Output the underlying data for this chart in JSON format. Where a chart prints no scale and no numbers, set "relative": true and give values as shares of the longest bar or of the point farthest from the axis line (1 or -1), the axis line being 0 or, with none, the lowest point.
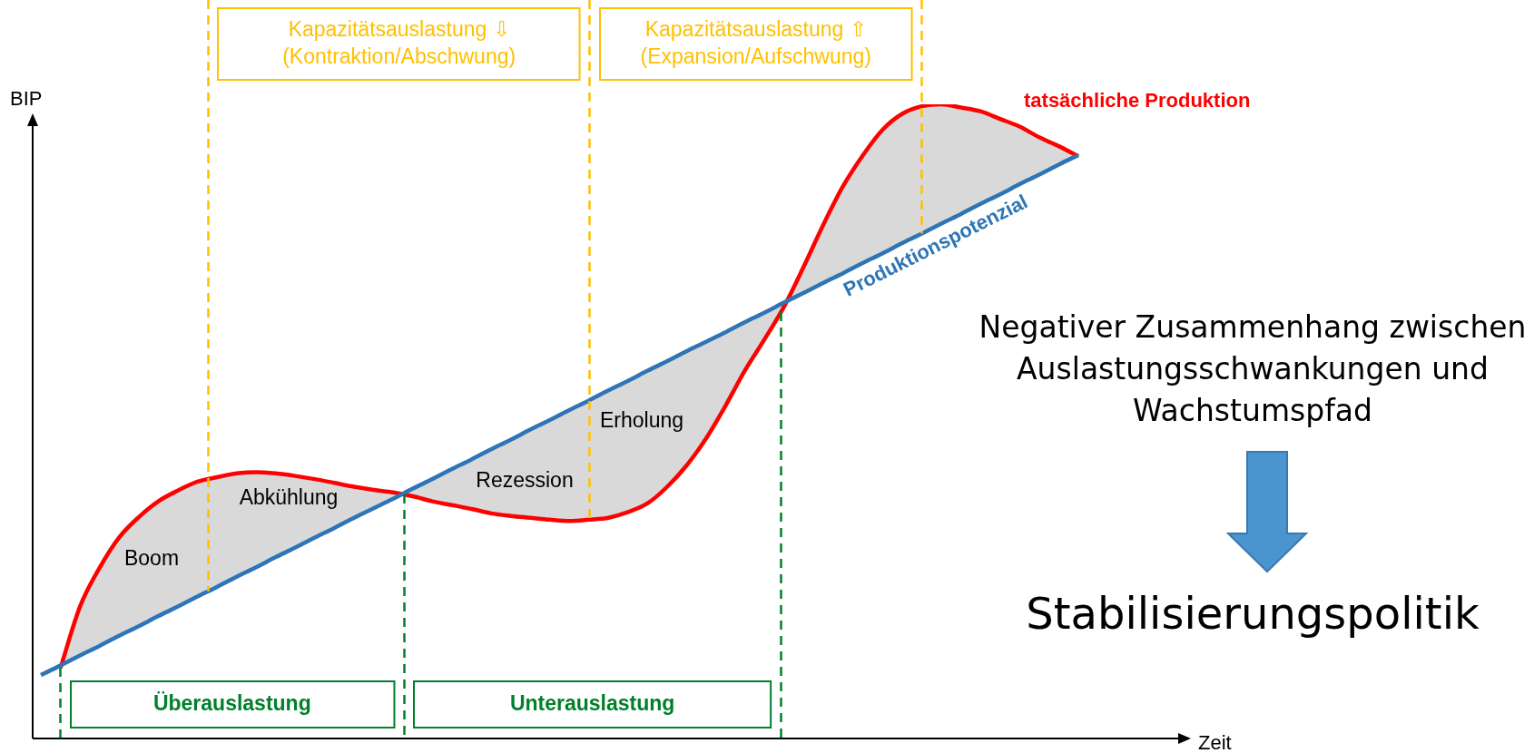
{
  "chart_data": {
    "type": "line",
    "relative": true,
    "legend": false,
    "line_style": "solid",
    "marker": "none",
    "ylabel": "BIP",
    "categories": [
      null,
      null,
      null,
      null,
      null,
      null,
      null,
      null,
      null,
      null,
      null,
      null,
      null,
      null,
      null,
      null,
      null,
      null,
      null,
      null,
      null,
      null,
      null,
      null,
      null,
      null,
      null,
      null,
      null,
      null,
      null,
      null,
      null,
      null,
      null,
      null,
      null,
      null,
      null,
      null,
      null,
      null,
      null,
      null,
      null,
      null,
      null,
      null,
      null,
      null,
      null,
      null,
      null,
      null
    ],
    "series": [
      {
        "name": "tatsächliche Produktion",
        "color": "#ff0000",
        "values": [
          null,
          0.111,
          0.208,
          0.269,
          0.317,
          0.349,
          0.374,
          0.391,
          0.405,
          0.412,
          0.418,
          0.42,
          0.418,
          0.414,
          0.409,
          0.403,
          0.397,
          0.392,
          0.388,
          0.382,
          0.374,
          0.368,
          0.362,
          0.355,
          0.351,
          0.348,
          0.345,
          0.343,
          0.345,
          0.348,
          0.357,
          0.371,
          0.397,
          0.431,
          0.474,
          0.526,
          0.582,
          0.631,
          0.683,
          0.746,
          0.812,
          0.872,
          0.92,
          0.96,
          0.985,
          0.997,
          1.0,
          0.995,
          0.989,
          0.977,
          0.965,
          0.948,
          0.934,
          0.918
        ]
      },
      {
        "name": "Produktionspotenzial",
        "color": "#2e75b6",
        "values": [
          0.1,
          0.115,
          0.131,
          0.146,
          0.162,
          0.177,
          0.193,
          0.208,
          0.224,
          0.239,
          0.255,
          0.27,
          0.286,
          0.301,
          0.317,
          0.332,
          0.348,
          0.363,
          0.378,
          0.394,
          0.409,
          0.425,
          0.44,
          0.456,
          0.471,
          0.487,
          0.502,
          0.518,
          0.533,
          0.549,
          0.564,
          0.58,
          0.595,
          0.611,
          0.626,
          0.641,
          0.657,
          0.672,
          0.688,
          0.703,
          0.719,
          0.734,
          0.75,
          0.765,
          0.781,
          0.796,
          0.812,
          0.827,
          0.843,
          0.858,
          0.874,
          0.889,
          0.905,
          0.92
        ]
      }
    ],
    "annotations": [
      "Boom",
      "Abkühlung",
      "Rezession",
      "Erholung",
      "Kapazitätsauslastung ⇩\n(Kontraktion/Abschwung)",
      "Kapazitätsauslastung ⇧\n(Expansion/Aufschwung)",
      "Überauslastung",
      "Unterauslastung",
      "Zeit",
      "Negativer Zusammenhang zwischen\nAuslastungsschwankungen und\nWachstumspfad",
      "Stabilisierungspolitik"
    ]
  }
}
